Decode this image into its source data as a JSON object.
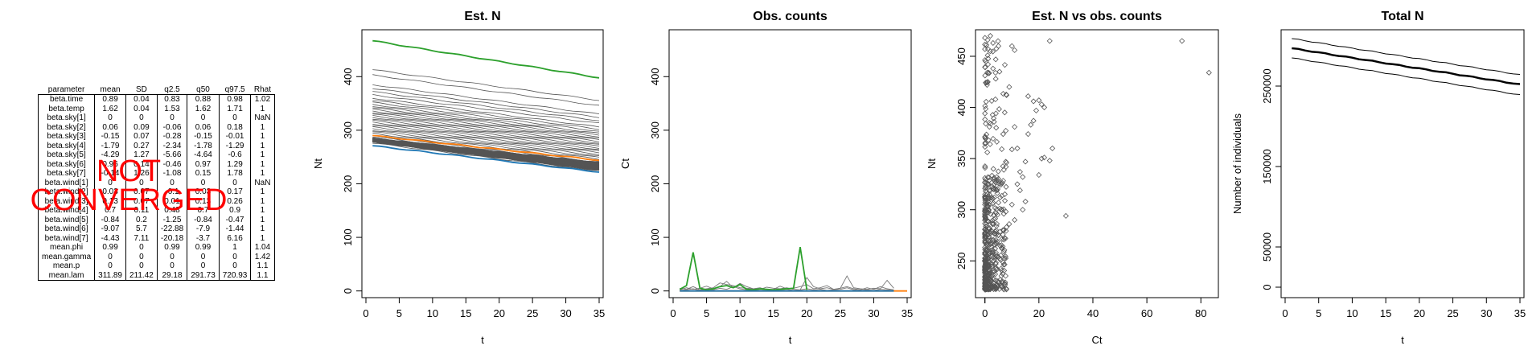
{
  "table": {
    "columns": [
      "parameter",
      "mean",
      "SD",
      "q2.5",
      "q50",
      "q97.5",
      "Rhat"
    ],
    "rows": [
      [
        "beta.time",
        "0.89",
        "0.04",
        "0.83",
        "0.88",
        "0.98",
        "1.02"
      ],
      [
        "beta.temp",
        "1.62",
        "0.04",
        "1.53",
        "1.62",
        "1.71",
        "1"
      ],
      [
        "beta.sky[1]",
        "0",
        "0",
        "0",
        "0",
        "0",
        "NaN"
      ],
      [
        "beta.sky[2]",
        "0.06",
        "0.09",
        "-0.06",
        "0.06",
        "0.18",
        "1"
      ],
      [
        "beta.sky[3]",
        "-0.15",
        "0.07",
        "-0.28",
        "-0.15",
        "-0.01",
        "1"
      ],
      [
        "beta.sky[4]",
        "-1.79",
        "0.27",
        "-2.34",
        "-1.78",
        "-1.29",
        "1"
      ],
      [
        "beta.sky[5]",
        "-4.29",
        "1.27",
        "-5.66",
        "-4.64",
        "-0.6",
        "1"
      ],
      [
        "beta.sky[6]",
        "0.96",
        "0.14",
        "-0.46",
        "0.97",
        "1.29",
        "1"
      ],
      [
        "beta.sky[7]",
        "-0.14",
        "1.26",
        "-1.08",
        "0.15",
        "1.78",
        "1"
      ],
      [
        "beta.wind[1]",
        "0",
        "0",
        "0",
        "0",
        "0",
        "NaN"
      ],
      [
        "beta.wind[2]",
        "0.03",
        "0.07",
        "-0.1",
        "0.03",
        "0.17",
        "1"
      ],
      [
        "beta.wind[3]",
        "0.13",
        "0.07",
        "0.01",
        "0.13",
        "0.26",
        "1"
      ],
      [
        "beta.wind[4]",
        "0.7",
        "0.11",
        "0.48",
        "0.7",
        "0.9",
        "1"
      ],
      [
        "beta.wind[5]",
        "-0.84",
        "0.2",
        "-1.25",
        "-0.84",
        "-0.47",
        "1"
      ],
      [
        "beta.wind[6]",
        "-9.07",
        "5.7",
        "-22.88",
        "-7.9",
        "-1.44",
        "1"
      ],
      [
        "beta.wind[7]",
        "-4.43",
        "7.11",
        "-20.18",
        "-3.7",
        "6.16",
        "1"
      ],
      [
        "mean.phi",
        "0.99",
        "0",
        "0.99",
        "0.99",
        "1",
        "1.04"
      ],
      [
        "mean.gamma",
        "0",
        "0",
        "0",
        "0",
        "0",
        "1.42"
      ],
      [
        "mean.p",
        "0",
        "0",
        "0",
        "0",
        "0",
        "1.1"
      ],
      [
        "mean.lam",
        "311.89",
        "211.42",
        "29.18",
        "291.73",
        "720.93",
        "1.1"
      ]
    ]
  },
  "overlay_text": "NOT\nCONVERGED",
  "colors": {
    "green": "#2ca02c",
    "orange": "#ff7f0e",
    "blue": "#1f77b4",
    "grey": "#777777",
    "red": "#ff0000"
  },
  "chart_data": [
    {
      "type": "line",
      "title": "Est. N",
      "xlabel": "t",
      "ylabel": "Nt",
      "xlim": [
        0,
        35
      ],
      "ylim": [
        -5,
        480
      ],
      "xticks": [
        0,
        5,
        10,
        15,
        20,
        25,
        30,
        35
      ],
      "yticks": [
        0,
        100,
        200,
        300,
        400
      ],
      "x_range": [
        1,
        35
      ],
      "grey_series_start_end": [
        [
          413,
          356
        ],
        [
          403,
          346
        ],
        [
          385,
          330
        ],
        [
          378,
          324
        ],
        [
          372,
          318
        ],
        [
          366,
          313
        ],
        [
          360,
          306
        ],
        [
          356,
          302
        ],
        [
          352,
          298
        ],
        [
          348,
          294
        ],
        [
          345,
          291
        ],
        [
          342,
          288
        ],
        [
          339,
          285
        ],
        [
          336,
          282
        ],
        [
          333,
          279
        ],
        [
          330,
          276
        ],
        [
          327,
          273
        ],
        [
          324,
          270
        ],
        [
          321,
          267
        ],
        [
          318,
          264
        ],
        [
          315,
          261
        ],
        [
          312,
          258
        ],
        [
          309,
          255
        ],
        [
          306,
          252
        ],
        [
          303,
          249
        ],
        [
          300,
          246
        ],
        [
          297,
          243
        ],
        [
          294,
          240
        ],
        [
          291,
          237
        ],
        [
          288,
          234
        ],
        [
          285,
          231
        ],
        [
          282,
          228
        ],
        [
          279,
          226
        ],
        [
          276,
          223
        ]
      ],
      "series": [
        {
          "color": "green",
          "start": 467,
          "end": 398
        },
        {
          "color": "orange",
          "start": 290,
          "end": 244
        },
        {
          "color": "blue",
          "start": 271,
          "end": 222
        }
      ]
    },
    {
      "type": "line",
      "title": "Obs. counts",
      "xlabel": "t",
      "ylabel": "Ct",
      "xlim": [
        0,
        35
      ],
      "ylim": [
        -5,
        480
      ],
      "xticks": [
        0,
        5,
        10,
        15,
        20,
        25,
        30,
        35
      ],
      "yticks": [
        0,
        100,
        200,
        300,
        400
      ],
      "series": [
        {
          "color": "grey",
          "x": [
            1,
            2,
            3,
            4,
            5,
            6,
            7,
            8,
            9,
            10,
            11,
            12,
            13,
            14,
            15,
            16,
            17,
            18,
            19,
            20,
            21,
            22,
            23,
            24,
            25,
            26,
            27,
            28,
            29,
            30,
            31,
            32,
            33
          ],
          "y": [
            5,
            3,
            8,
            2,
            4,
            6,
            15,
            12,
            10,
            6,
            5,
            4,
            3,
            7,
            5,
            4,
            6,
            3,
            2,
            25,
            8,
            4,
            6,
            3,
            5,
            28,
            6,
            4,
            3,
            5,
            4,
            20,
            5
          ]
        },
        {
          "color": "grey",
          "x": [
            1,
            2,
            3,
            4,
            5,
            6,
            7,
            8,
            9,
            10,
            11,
            12,
            13,
            14,
            15,
            16,
            17,
            18,
            19,
            20,
            21,
            22,
            23,
            24,
            25,
            26,
            27,
            28,
            29,
            30,
            31,
            32,
            33
          ],
          "y": [
            2,
            6,
            3,
            5,
            9,
            4,
            8,
            18,
            6,
            14,
            8,
            4,
            6,
            2,
            3,
            9,
            4,
            5,
            8,
            12,
            4,
            6,
            10,
            3,
            5,
            8,
            4,
            2,
            6,
            3,
            8,
            4,
            2
          ]
        },
        {
          "color": "grey",
          "x": [
            1,
            2,
            3,
            4,
            5,
            6,
            7,
            8,
            9,
            10,
            11,
            12,
            13,
            14,
            15,
            16,
            17,
            18,
            19,
            20,
            21,
            22,
            23,
            24,
            25,
            26,
            27,
            28,
            29,
            30,
            31,
            32,
            33
          ],
          "y": [
            1,
            2,
            4,
            1,
            3,
            2,
            5,
            3,
            8,
            4,
            2,
            1,
            3,
            2,
            1,
            2,
            3,
            1,
            2,
            4,
            2,
            3,
            1,
            2,
            3,
            6,
            2,
            1,
            2,
            1,
            3,
            2,
            1
          ]
        },
        {
          "color": "green",
          "x": [
            1,
            2,
            3,
            4,
            5,
            6,
            7,
            8,
            9,
            10,
            11,
            12,
            13,
            14,
            15,
            16,
            17,
            18,
            19,
            20
          ],
          "y": [
            3,
            10,
            72,
            5,
            2,
            4,
            8,
            10,
            6,
            12,
            3,
            2,
            4,
            3,
            2,
            3,
            4,
            5,
            82,
            2
          ]
        },
        {
          "color": "orange",
          "x": [
            1,
            2,
            3,
            4,
            5,
            6,
            7,
            8,
            9,
            10,
            11,
            12,
            13,
            14,
            15,
            16,
            17,
            18,
            19,
            20,
            21,
            22,
            23,
            24,
            25,
            26,
            27,
            28,
            29,
            30,
            31,
            32,
            33,
            34,
            35
          ],
          "y": [
            0,
            0,
            0,
            0,
            0,
            0,
            0,
            0,
            0,
            0,
            0,
            0,
            0,
            0,
            0,
            0,
            0,
            0,
            0,
            0,
            0,
            0,
            0,
            0,
            0,
            0,
            0,
            0,
            0,
            0,
            0,
            0,
            0,
            0,
            0
          ]
        },
        {
          "color": "blue",
          "x": [
            1,
            2,
            3,
            4,
            5,
            6,
            7,
            8,
            9,
            10,
            11,
            12,
            13,
            14,
            15,
            16,
            17,
            18,
            19,
            20,
            21,
            22,
            23,
            24,
            25,
            26,
            27,
            28,
            29,
            30,
            31,
            32,
            33
          ],
          "y": [
            0,
            0,
            0,
            0,
            0,
            0,
            0,
            0,
            0,
            0,
            0,
            0,
            0,
            0,
            0,
            0,
            0,
            0,
            0,
            0,
            0,
            0,
            0,
            0,
            0,
            0,
            0,
            0,
            0,
            0,
            0,
            0,
            0
          ]
        }
      ]
    },
    {
      "type": "scatter",
      "title": "Est. N vs obs. counts",
      "xlabel": "Ct",
      "ylabel": "Nt",
      "xlim": [
        -2,
        85
      ],
      "ylim": [
        218,
        472
      ],
      "xticks": [
        0,
        20,
        40,
        60,
        80
      ],
      "yticks": [
        250,
        300,
        350,
        400,
        450
      ],
      "points": [
        [
          73,
          465
        ],
        [
          83,
          434
        ],
        [
          24,
          465
        ],
        [
          30,
          294
        ],
        [
          25,
          360
        ],
        [
          24,
          348
        ],
        [
          22,
          400
        ],
        [
          21,
          403
        ],
        [
          20,
          407
        ],
        [
          18,
          387
        ],
        [
          17,
          383
        ],
        [
          16,
          374
        ],
        [
          15,
          347
        ],
        [
          14,
          332
        ],
        [
          13,
          337
        ],
        [
          12,
          360
        ],
        [
          11,
          381
        ],
        [
          10,
          359
        ],
        [
          9,
          420
        ],
        [
          8,
          412
        ],
        [
          8,
          346
        ],
        [
          7,
          339
        ],
        [
          7,
          296
        ],
        [
          6,
          326
        ],
        [
          6,
          300
        ],
        [
          5,
          460
        ],
        [
          5,
          275
        ],
        [
          4,
          447
        ],
        [
          4,
          428
        ],
        [
          3,
          463
        ],
        [
          3,
          438
        ],
        [
          2,
          455
        ],
        [
          2,
          470
        ],
        [
          1,
          466
        ],
        [
          1,
          451
        ],
        [
          0,
          468
        ],
        [
          0,
          457
        ],
        [
          6,
          226
        ],
        [
          10,
          460
        ],
        [
          11,
          456
        ],
        [
          16,
          411
        ],
        [
          18,
          406
        ],
        [
          19,
          397
        ],
        [
          20,
          334
        ],
        [
          21,
          350
        ],
        [
          22,
          351
        ],
        [
          12,
          325
        ],
        [
          13,
          319
        ],
        [
          9,
          286
        ],
        [
          8,
          283
        ],
        [
          7,
          280
        ],
        [
          15,
          308
        ],
        [
          14,
          300
        ],
        [
          11,
          290
        ],
        [
          10,
          305
        ],
        [
          5,
          254
        ],
        [
          4,
          247
        ],
        [
          3,
          239
        ],
        [
          2,
          233
        ],
        [
          1,
          230
        ],
        [
          0,
          222
        ]
      ],
      "dense_column": {
        "x_max": 8,
        "y_range": [
          222,
          470
        ]
      }
    },
    {
      "type": "line",
      "title": "Total N",
      "xlabel": "t",
      "ylabel": "Number of individuals",
      "xlim": [
        0,
        35
      ],
      "ylim": [
        -8000,
        315000
      ],
      "xticks": [
        0,
        5,
        10,
        15,
        20,
        25,
        30,
        35
      ],
      "yticks": [
        0,
        50000,
        150000,
        250000
      ],
      "x_range": [
        1,
        35
      ],
      "series": [
        {
          "name": "upper",
          "start": 309000,
          "end": 264000,
          "width": 1
        },
        {
          "name": "mean",
          "start": 297000,
          "end": 252000,
          "width": 2.5
        },
        {
          "name": "lower",
          "start": 285000,
          "end": 239000,
          "width": 1
        }
      ]
    }
  ]
}
